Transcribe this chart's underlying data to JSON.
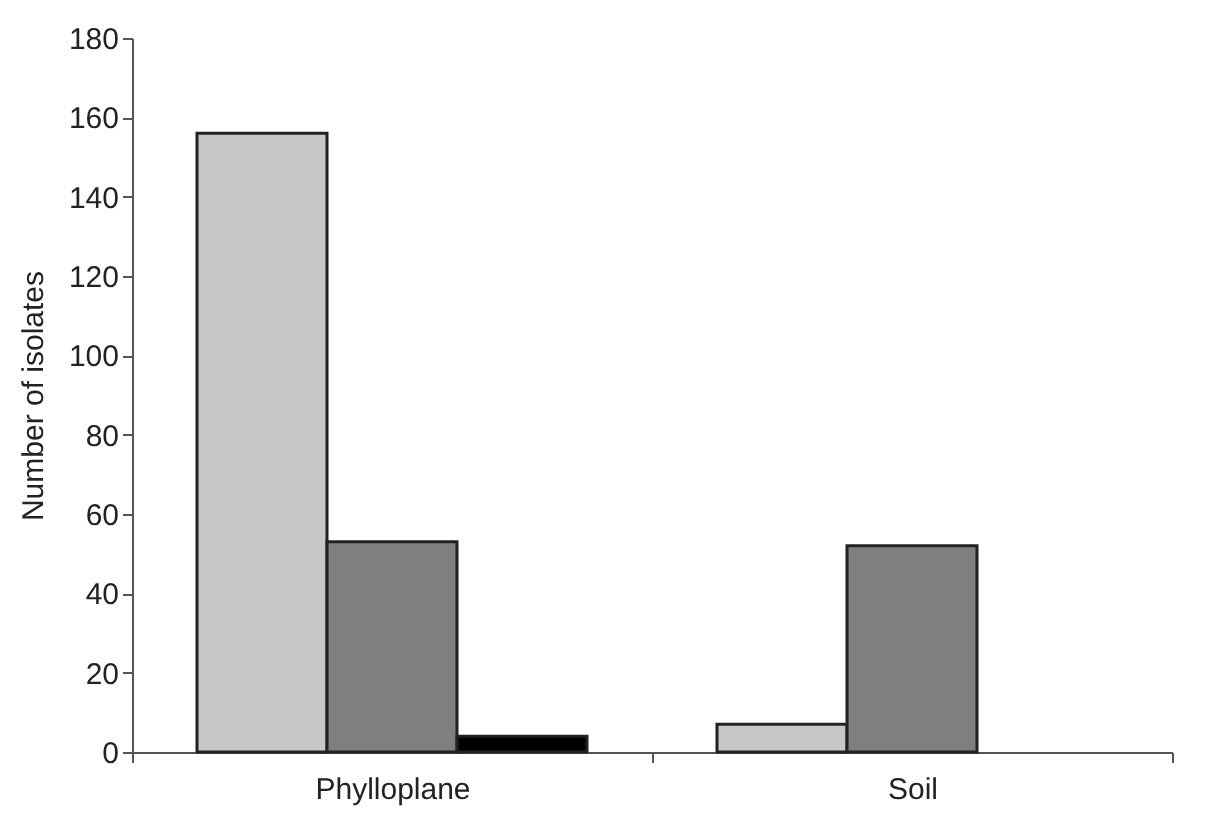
{
  "chart_data": {
    "type": "bar",
    "ylabel": "Number of isolates",
    "categories": [
      "Phylloplane",
      "Soil"
    ],
    "series": [
      {
        "color": "#c8c8c8",
        "values": [
          156,
          7
        ]
      },
      {
        "color": "#7f7f7f",
        "values": [
          53,
          52
        ]
      },
      {
        "color": "#000000",
        "values": [
          4,
          null
        ]
      }
    ],
    "ylim": [
      0,
      180
    ],
    "yticks": [
      0,
      20,
      40,
      60,
      80,
      100,
      120,
      140,
      160,
      180
    ],
    "grid": false,
    "legend": false
  }
}
